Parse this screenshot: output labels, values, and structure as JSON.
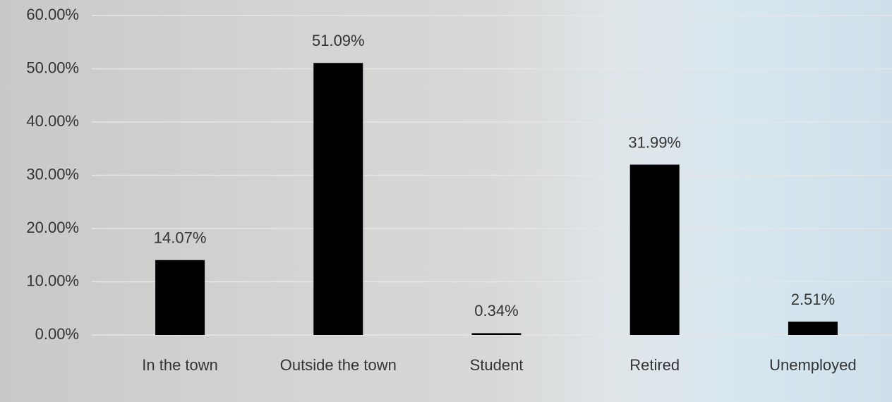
{
  "chart_data": {
    "type": "bar",
    "categories": [
      "In the town",
      "Outside the town",
      "Student",
      "Retired",
      "Unemployed"
    ],
    "values": [
      14.07,
      51.09,
      0.34,
      31.99,
      2.51
    ],
    "value_labels": [
      "14.07%",
      "51.09%",
      "0.34%",
      "31.99%",
      "2.51%"
    ],
    "color": "#000000",
    "ylim": [
      0,
      60
    ],
    "yticks": [
      {
        "value": 0,
        "label": "0.00%"
      },
      {
        "value": 10,
        "label": "10.00%"
      },
      {
        "value": 20,
        "label": "20.00%"
      },
      {
        "value": 30,
        "label": "30.00%"
      },
      {
        "value": 40,
        "label": "40.00%"
      },
      {
        "value": 50,
        "label": "50.00%"
      },
      {
        "value": 60,
        "label": "60.00%"
      }
    ],
    "grid": true
  }
}
